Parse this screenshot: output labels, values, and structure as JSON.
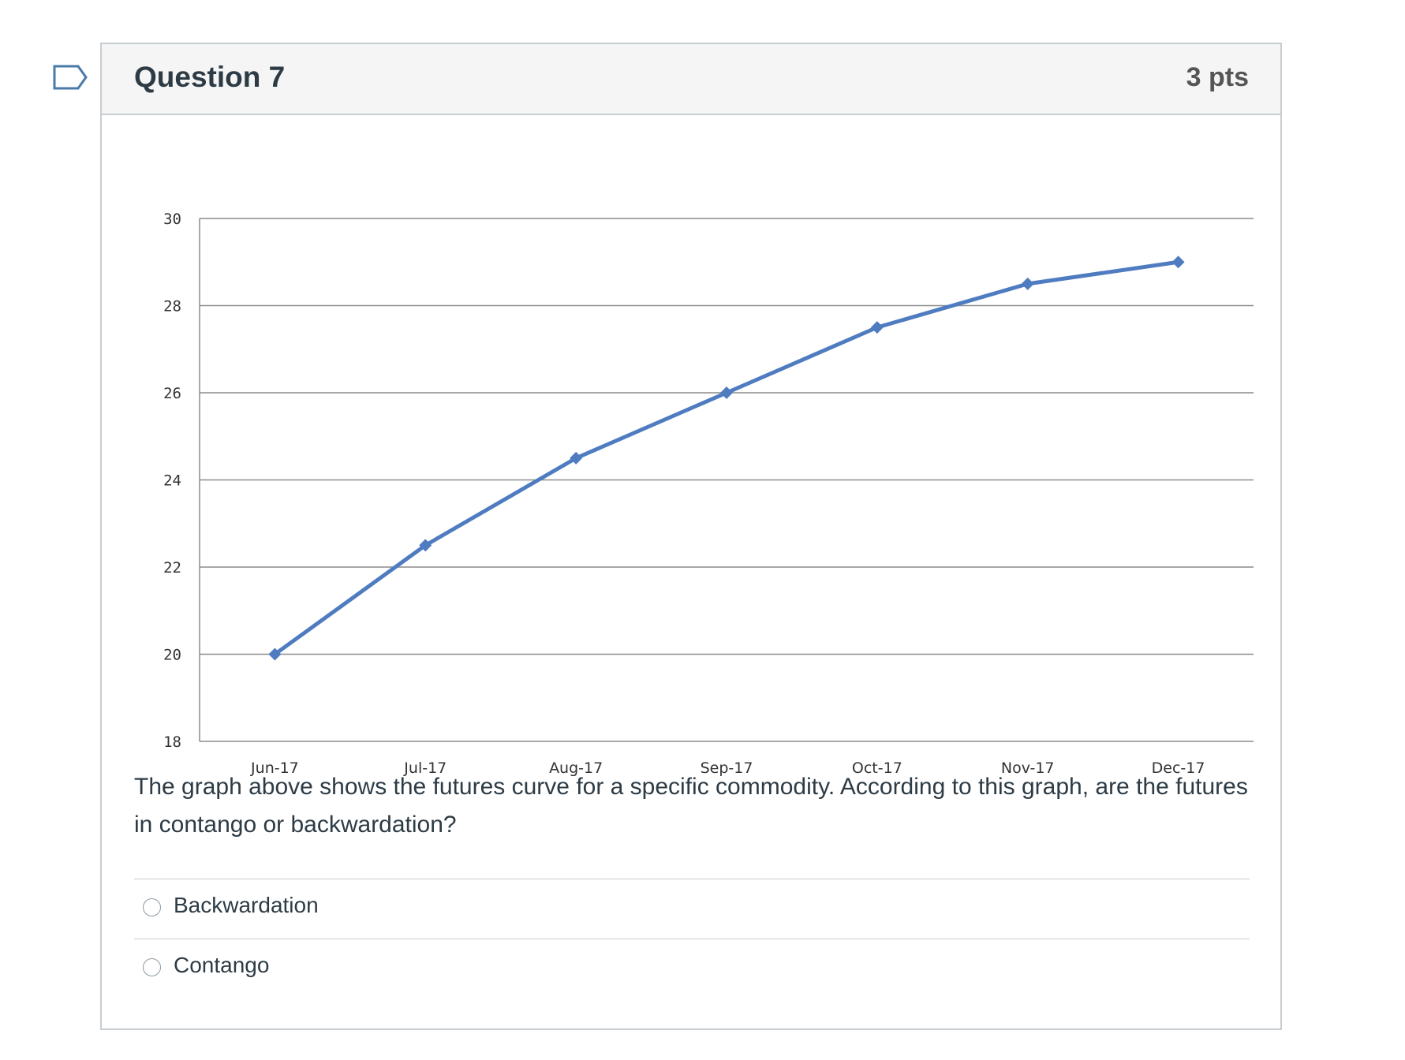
{
  "question": {
    "title": "Question 7",
    "points": "3 pts",
    "text": "The graph above shows the futures curve for a specific commodity. According to this graph, are the futures in contango or backwardation?",
    "answers": [
      {
        "label": "Backwardation",
        "selected": false
      },
      {
        "label": "Contango",
        "selected": false
      }
    ]
  },
  "flag_icon": "bookmark-flag-icon",
  "chart_data": {
    "type": "line",
    "categories": [
      "Jun-17",
      "Jul-17",
      "Aug-17",
      "Sep-17",
      "Oct-17",
      "Nov-17",
      "Dec-17"
    ],
    "series": [
      {
        "values": [
          20,
          22.5,
          24.5,
          26,
          27.5,
          28.5,
          29
        ]
      }
    ],
    "ylim": [
      18,
      30
    ],
    "yticks": [
      18,
      20,
      22,
      24,
      26,
      28,
      30
    ],
    "grid": true,
    "legend": "none",
    "title": "",
    "xlabel": "",
    "ylabel": "",
    "line_color": "#4f7cc1",
    "grid_color": "#8c8c8c"
  }
}
